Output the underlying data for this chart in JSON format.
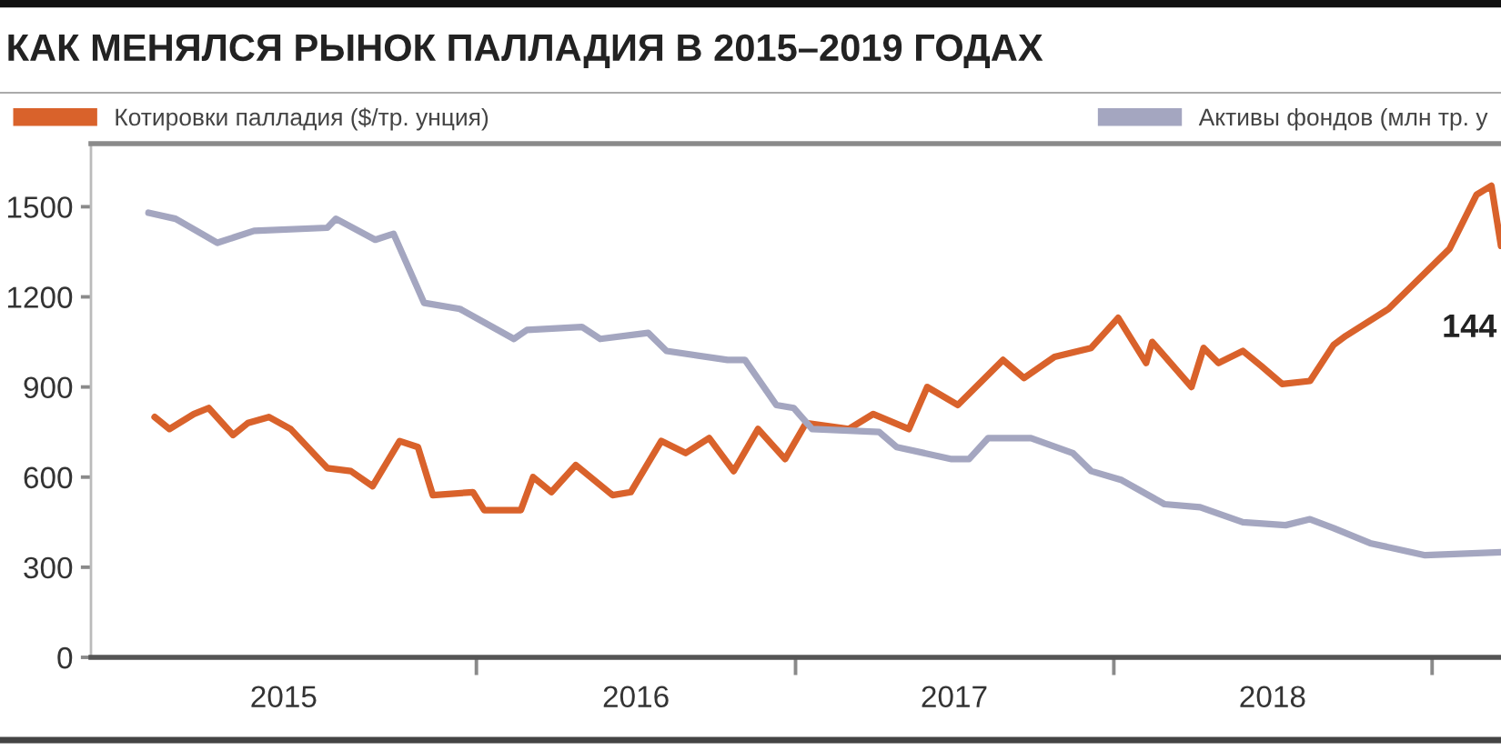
{
  "chart_data": {
    "type": "line",
    "title": "КАК МЕНЯЛСЯ РЫНОК ПАЛЛАДИЯ В 2015–2019 ГОДАХ",
    "annotations": [
      "144"
    ],
    "series": [
      {
        "name": "Котировки палладия ($/тр. унция)",
        "color": "#d9622b",
        "x": [
          "2014-12-28",
          "2015-01-14",
          "2015-02-11",
          "2015-02-28",
          "2015-03-28",
          "2015-04-14",
          "2015-05-08",
          "2015-06-02",
          "2015-07-14",
          "2015-08-10",
          "2015-09-04",
          "2015-10-05",
          "2015-10-26",
          "2015-11-12",
          "2015-12-28",
          "2016-01-10",
          "2016-02-21",
          "2016-03-06",
          "2016-03-27",
          "2016-04-24",
          "2016-06-05",
          "2016-06-26",
          "2016-07-31",
          "2016-08-28",
          "2016-09-24",
          "2016-10-22",
          "2016-11-19",
          "2016-12-20",
          "2017-01-13",
          "2017-03-03",
          "2017-03-31",
          "2017-05-11",
          "2017-06-01",
          "2017-07-06",
          "2017-08-27",
          "2017-09-20",
          "2017-10-25",
          "2017-12-06",
          "2018-01-06",
          "2018-02-07",
          "2018-02-14",
          "2018-03-31",
          "2018-04-14",
          "2018-05-01",
          "2018-05-29",
          "2018-06-19",
          "2018-07-13",
          "2018-08-14",
          "2018-09-10",
          "2018-09-24",
          "2018-11-12",
          "2018-12-10",
          "2019-01-21",
          "2019-02-21",
          "2019-03-10",
          "2019-03-21"
        ],
        "values": [
          800,
          760,
          810,
          830,
          740,
          780,
          800,
          760,
          630,
          620,
          570,
          720,
          700,
          540,
          550,
          490,
          490,
          600,
          550,
          640,
          540,
          550,
          720,
          680,
          730,
          620,
          760,
          660,
          780,
          760,
          810,
          760,
          900,
          840,
          990,
          930,
          1000,
          1030,
          1130,
          980,
          1050,
          900,
          1030,
          980,
          1020,
          970,
          910,
          920,
          1040,
          1070,
          1160,
          1240,
          1360,
          1540,
          1570,
          1370
        ]
      },
      {
        "name": "Активы фондов (млн тр. у",
        "color": "#a4a6c0",
        "x": [
          "2014-12-21",
          "2015-01-21",
          "2015-03-10",
          "2015-04-21",
          "2015-07-14",
          "2015-07-24",
          "2015-09-07",
          "2015-09-28",
          "2015-11-02",
          "2015-12-13",
          "2016-02-13",
          "2016-02-28",
          "2016-05-01",
          "2016-05-22",
          "2016-07-16",
          "2016-08-06",
          "2016-10-15",
          "2016-11-04",
          "2016-12-10",
          "2016-12-30",
          "2017-01-20",
          "2017-04-07",
          "2017-04-27",
          "2017-06-29",
          "2017-07-19",
          "2017-08-10",
          "2017-09-28",
          "2017-11-15",
          "2017-12-06",
          "2018-01-10",
          "2018-02-28",
          "2018-04-10",
          "2018-05-29",
          "2018-07-17",
          "2018-08-14",
          "2018-09-10",
          "2018-10-22",
          "2018-12-24",
          "2019-03-21"
        ],
        "values": [
          1480,
          1460,
          1380,
          1420,
          1430,
          1460,
          1390,
          1410,
          1180,
          1160,
          1060,
          1090,
          1100,
          1060,
          1080,
          1020,
          990,
          990,
          840,
          830,
          760,
          750,
          700,
          660,
          660,
          730,
          730,
          680,
          620,
          590,
          510,
          500,
          450,
          440,
          460,
          430,
          380,
          340,
          350
        ]
      }
    ],
    "xlim": [
      "2014-10-16",
      "2019-03-21"
    ],
    "xticks": [
      {
        "value": "2015-05-25",
        "label": "2015"
      },
      {
        "value": "2016-01-01",
        "label": null
      },
      {
        "value": "2016-07-02",
        "label": "2016"
      },
      {
        "value": "2017-01-01",
        "label": null
      },
      {
        "value": "2017-07-02",
        "label": "2017"
      },
      {
        "value": "2018-01-01",
        "label": null
      },
      {
        "value": "2018-07-02",
        "label": "2018"
      },
      {
        "value": "2019-01-01",
        "label": null
      }
    ],
    "ylim": [
      0,
      1710
    ],
    "yticks": [
      0,
      300,
      600,
      900,
      1200,
      1500
    ],
    "legend": "top",
    "line_style": "solid"
  }
}
